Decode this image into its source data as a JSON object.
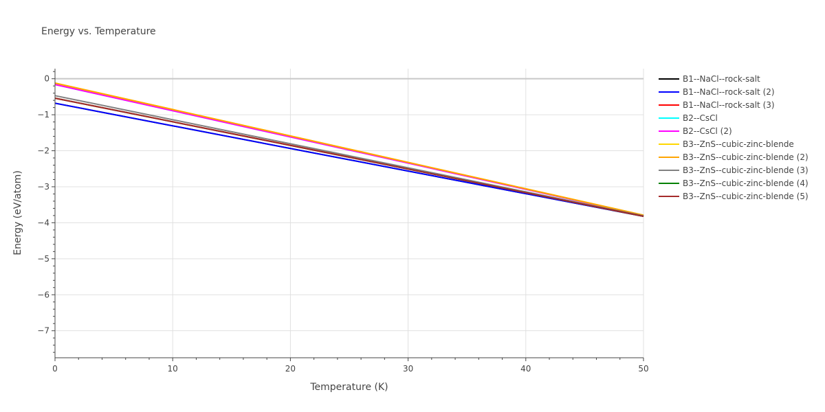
{
  "chart_data": {
    "type": "line",
    "title": "Energy vs. Temperature",
    "xlabel": "Temperature (K)",
    "ylabel": "Energy (eV/atom)",
    "xlim": [
      0,
      50
    ],
    "ylim": [
      -7.75,
      0.28
    ],
    "x_ticks": [
      0,
      10,
      20,
      30,
      40,
      50
    ],
    "y_ticks": [
      0,
      -1,
      -2,
      -3,
      -4,
      -5,
      -6,
      -7
    ],
    "y_tick_labels": [
      "0",
      "−1",
      "−2",
      "−3",
      "−4",
      "−5",
      "−6",
      "−7"
    ],
    "grid": true,
    "legend_position": "right",
    "series": [
      {
        "name": "B1--NaCl--rock-salt",
        "color": "#000000",
        "x": [
          0,
          50
        ],
        "y": [
          -0.68,
          -3.82
        ]
      },
      {
        "name": "B1--NaCl--rock-salt (2)",
        "color": "#0000ff",
        "x": [
          0,
          50
        ],
        "y": [
          -0.68,
          -3.82
        ]
      },
      {
        "name": "B1--NaCl--rock-salt (3)",
        "color": "#ff0000",
        "x": [
          0,
          50
        ],
        "y": [
          -0.54,
          -3.81
        ]
      },
      {
        "name": "B2--CsCl",
        "color": "#00ffff",
        "x": [
          0,
          50
        ],
        "y": [
          -0.16,
          -3.8
        ]
      },
      {
        "name": "B2--CsCl (2)",
        "color": "#ff00ff",
        "x": [
          0,
          50
        ],
        "y": [
          -0.16,
          -3.8
        ]
      },
      {
        "name": "B3--ZnS--cubic-zinc-blende",
        "color": "#ffd700",
        "x": [
          0,
          50
        ],
        "y": [
          -0.12,
          -3.79
        ]
      },
      {
        "name": "B3--ZnS--cubic-zinc-blende (2)",
        "color": "#ffa500",
        "x": [
          0,
          50
        ],
        "y": [
          -0.12,
          -3.79
        ]
      },
      {
        "name": "B3--ZnS--cubic-zinc-blende (3)",
        "color": "#808080",
        "x": [
          0,
          50
        ],
        "y": [
          -0.47,
          -3.81
        ]
      },
      {
        "name": "B3--ZnS--cubic-zinc-blende (4)",
        "color": "#008000",
        "x": [
          0,
          50
        ],
        "y": [
          -0.54,
          -3.82
        ]
      },
      {
        "name": "B3--ZnS--cubic-zinc-blende (5)",
        "color": "#a52a2a",
        "x": [
          0,
          50
        ],
        "y": [
          -0.54,
          -3.82
        ]
      }
    ]
  }
}
